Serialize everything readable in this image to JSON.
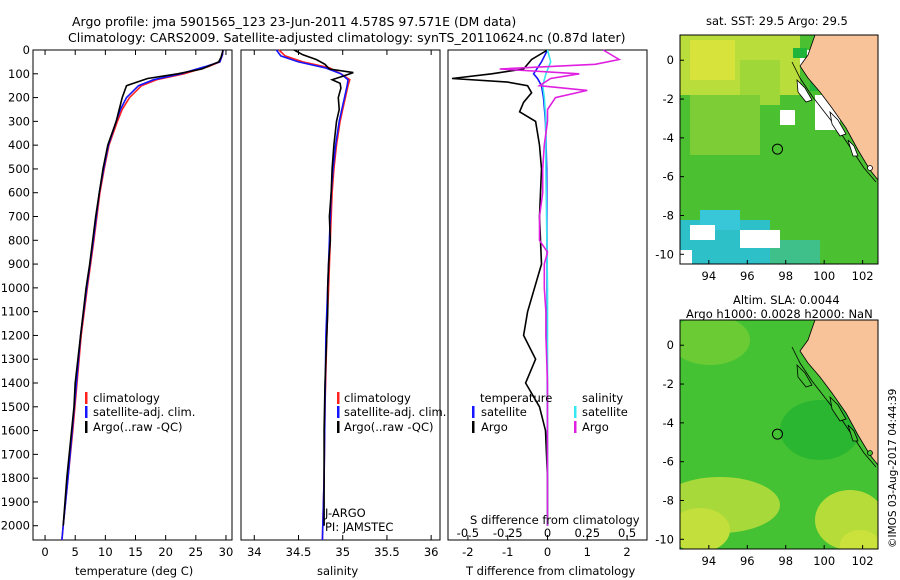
{
  "header": {
    "line1": "Argo profile: jma 5901565_123 23-Jun-2011 4.578S 97.571E (DM data)",
    "line2": "Climatology: CARS2009. Satellite-adjusted climatology: synTS_20110624.nc (0.87d later)"
  },
  "colors": {
    "climatology": "#ff2020",
    "satellite": "#1515ff",
    "argo": "#000000",
    "sat_salinity": "#33e8ee",
    "argo_salinity": "#e020e0",
    "land": "#f9c39a"
  },
  "chart_data": [
    {
      "type": "line",
      "name": "temperature-profile",
      "xlabel": "temperature (deg C)",
      "ylabel": "",
      "xlim": [
        -2,
        31
      ],
      "ylim": [
        2060,
        0
      ],
      "xticks": [
        0,
        5,
        10,
        15,
        20,
        25,
        30
      ],
      "yticks": [
        0,
        100,
        200,
        300,
        400,
        500,
        600,
        700,
        800,
        900,
        1000,
        1100,
        1200,
        1300,
        1400,
        1500,
        1600,
        1700,
        1800,
        1900,
        2000
      ],
      "legend": [
        "climatology",
        "satellite-adj. clim.",
        "Argo(..raw -QC)"
      ],
      "series": [
        {
          "name": "climatology",
          "color": "#ff2020",
          "depth": [
            0,
            20,
            50,
            70,
            100,
            125,
            150,
            200,
            250,
            300,
            400,
            500,
            600,
            700,
            800,
            1000,
            1200,
            1400,
            1600,
            1800,
            2000,
            2060
          ],
          "values": [
            29.5,
            29.4,
            29.0,
            27.0,
            23.0,
            18.5,
            16.0,
            14.0,
            12.8,
            12.0,
            10.6,
            9.8,
            9.1,
            8.6,
            8.1,
            7.0,
            6.0,
            5.3,
            4.6,
            3.8,
            3.0,
            2.8
          ]
        },
        {
          "name": "satellite-adj. clim.",
          "color": "#1515ff",
          "depth": [
            0,
            20,
            50,
            70,
            100,
            125,
            150,
            200,
            250,
            300,
            400,
            500,
            600,
            700,
            800,
            1000,
            1200,
            1400,
            1600,
            1800,
            2000,
            2060
          ],
          "values": [
            29.5,
            29.4,
            29.0,
            26.5,
            22.5,
            18.0,
            15.5,
            13.5,
            12.5,
            11.8,
            10.5,
            9.7,
            9.0,
            8.5,
            8.0,
            6.9,
            5.9,
            5.2,
            4.5,
            3.8,
            3.0,
            2.8
          ]
        },
        {
          "name": "Argo(..raw -QC)",
          "color": "#000000",
          "depth": [
            0,
            10,
            30,
            50,
            80,
            100,
            120,
            150,
            200,
            250,
            300,
            400,
            500,
            600,
            700,
            800,
            900,
            1000,
            1200,
            1400,
            1500,
            1600,
            1800,
            2000
          ],
          "values": [
            29.5,
            29.4,
            29.2,
            28.8,
            26.0,
            22.0,
            17.0,
            13.5,
            12.8,
            12.3,
            11.8,
            10.4,
            9.6,
            9.0,
            8.4,
            7.9,
            7.4,
            6.8,
            5.9,
            5.0,
            4.8,
            4.4,
            3.6,
            3.0
          ]
        }
      ]
    },
    {
      "type": "line",
      "name": "salinity-profile",
      "xlabel": "salinity",
      "xlim": [
        33.85,
        36.1
      ],
      "ylim": [
        2060,
        0
      ],
      "xticks": [
        34,
        34.5,
        35,
        35.5,
        36
      ],
      "legend": [
        "climatology",
        "satellite-adj. clim.",
        "Argo(..raw -QC)"
      ],
      "annotations": [
        "J-ARGO",
        "PI: JAMSTEC"
      ],
      "series": [
        {
          "name": "climatology",
          "color": "#ff2020",
          "depth": [
            0,
            25,
            50,
            75,
            100,
            125,
            150,
            200,
            250,
            300,
            400,
            500,
            600,
            800,
            1000,
            1200,
            1500,
            1800,
            2060
          ],
          "values": [
            34.28,
            34.35,
            34.55,
            34.85,
            34.98,
            35.08,
            35.06,
            35.03,
            35.0,
            34.97,
            34.93,
            34.9,
            34.88,
            34.86,
            34.84,
            34.82,
            34.8,
            34.79,
            34.77
          ]
        },
        {
          "name": "satellite-adj. clim.",
          "color": "#1515ff",
          "depth": [
            0,
            25,
            50,
            75,
            100,
            125,
            150,
            200,
            250,
            300,
            400,
            500,
            600,
            800,
            1000,
            1200,
            1500,
            1800,
            2060
          ],
          "values": [
            34.25,
            34.3,
            34.5,
            34.8,
            34.98,
            35.06,
            35.05,
            35.02,
            34.99,
            34.96,
            34.92,
            34.89,
            34.87,
            34.85,
            34.83,
            34.81,
            34.8,
            34.79,
            34.77
          ]
        },
        {
          "name": "Argo(..raw -QC)",
          "color": "#000000",
          "depth": [
            0,
            20,
            40,
            60,
            80,
            95,
            110,
            125,
            140,
            160,
            200,
            250,
            300,
            400,
            500,
            600,
            700,
            800,
            900,
            1000,
            1100,
            1200,
            1400,
            1600,
            1800,
            2000
          ],
          "values": [
            34.45,
            34.55,
            34.7,
            34.8,
            34.85,
            35.12,
            35.0,
            34.88,
            34.97,
            34.98,
            34.95,
            34.96,
            34.93,
            34.9,
            34.88,
            34.87,
            34.85,
            34.86,
            34.84,
            34.83,
            34.83,
            34.82,
            34.8,
            34.79,
            34.79,
            34.79
          ]
        }
      ]
    },
    {
      "type": "line",
      "name": "difference-profile",
      "xlabel": "T difference from climatology",
      "xlabel_top": "S difference from climatology",
      "xlim": [
        -2.5,
        2.5
      ],
      "ylim": [
        2060,
        0
      ],
      "xticks_T": [
        -2,
        -1,
        0,
        1,
        2
      ],
      "xticks_S": [
        -0.5,
        -0.25,
        0,
        0.25,
        0.5
      ],
      "legend_T_title": "temperature",
      "legend_S_title": "salinity",
      "legend": [
        "satellite",
        "Argo"
      ],
      "series": [
        {
          "name": "T satellite",
          "color": "#1515ff",
          "depth": [
            0,
            50,
            100,
            120,
            150,
            200,
            300,
            500,
            1000,
            2000
          ],
          "values": [
            0.0,
            -0.15,
            -0.35,
            -0.25,
            -0.15,
            -0.1,
            -0.05,
            -0.02,
            -0.01,
            0.0
          ]
        },
        {
          "name": "T Argo",
          "color": "#000000",
          "depth": [
            0,
            40,
            80,
            100,
            120,
            135,
            150,
            180,
            220,
            260,
            300,
            400,
            500,
            700,
            900,
            1100,
            1200,
            1300,
            1400,
            1500,
            1600,
            1800,
            2000
          ],
          "values": [
            0.0,
            -0.4,
            -0.6,
            -1.4,
            -2.4,
            -1.0,
            -0.5,
            -0.4,
            -0.6,
            -0.7,
            -0.3,
            -0.2,
            -0.15,
            -0.2,
            -0.15,
            -0.5,
            -0.6,
            -0.3,
            -0.55,
            -0.2,
            -0.05,
            0.0,
            0.0
          ]
        },
        {
          "name": "S satellite",
          "color": "#33e8ee",
          "depth": [
            0,
            50,
            100,
            150,
            200,
            300,
            500,
            1000,
            2000
          ],
          "values": [
            0.0,
            0.02,
            -0.01,
            -0.03,
            -0.02,
            -0.01,
            -0.01,
            0.0,
            0.0
          ]
        },
        {
          "name": "S Argo",
          "color": "#e020e0",
          "depth": [
            0,
            40,
            60,
            80,
            100,
            120,
            150,
            170,
            200,
            250,
            300,
            400,
            500,
            600,
            700,
            800,
            850,
            900,
            1000,
            1100,
            1200,
            1400,
            1600,
            1800,
            2000
          ],
          "values": [
            0.35,
            0.45,
            0.3,
            -0.3,
            0.2,
            0.02,
            -0.05,
            0.25,
            0.05,
            0.0,
            0.0,
            -0.02,
            -0.03,
            -0.03,
            -0.05,
            -0.05,
            0.0,
            -0.02,
            -0.02,
            -0.01,
            -0.01,
            0.0,
            0.0,
            0.0,
            0.0
          ]
        }
      ]
    },
    {
      "type": "heatmap",
      "name": "sst-map",
      "title": "sat. SST: 29.5 Argo: 29.5",
      "xlim": [
        92.5,
        102.8
      ],
      "ylim": [
        -10.5,
        1.3
      ],
      "xticks": [
        94,
        96,
        98,
        100,
        102
      ],
      "yticks": [
        0,
        -2,
        -4,
        -6,
        -8,
        -10
      ],
      "marker": {
        "lon": 97.571,
        "lat": -4.578
      }
    },
    {
      "type": "heatmap",
      "name": "sla-map",
      "title": "Altim. SLA: 0.0044",
      "subtitle": "Argo h1000: 0.0028 h2000: NaN",
      "xlim": [
        92.5,
        102.8
      ],
      "ylim": [
        -10.5,
        1.3
      ],
      "xticks": [
        94,
        96,
        98,
        100,
        102
      ],
      "yticks": [
        0,
        -2,
        -4,
        -6,
        -8,
        -10
      ],
      "marker": {
        "lon": 97.571,
        "lat": -4.578
      }
    }
  ],
  "footer": {
    "stamp": "©IMOS 03-Aug-2017 04:44:39"
  }
}
